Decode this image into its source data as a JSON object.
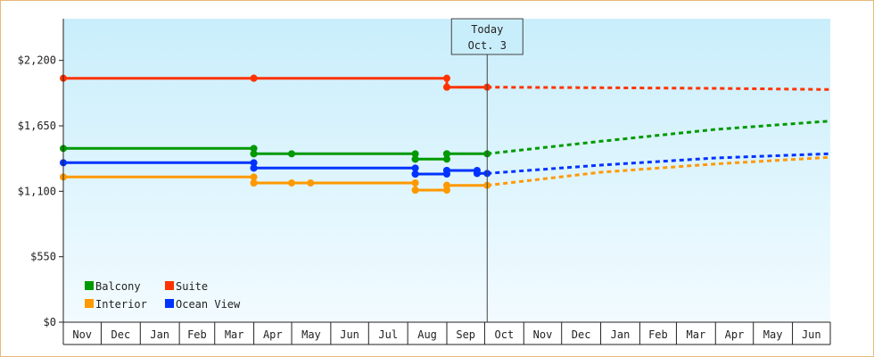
{
  "chart_data": {
    "type": "line",
    "title": "",
    "xlabel": "",
    "ylabel": "",
    "ylim": [
      0,
      2550
    ],
    "y_ticks": [
      0,
      550,
      1100,
      1650,
      2200
    ],
    "y_tick_labels": [
      "$0",
      "$550",
      "$1,100",
      "$1,650",
      "$2,200"
    ],
    "months": [
      "Nov",
      "Dec",
      "Jan",
      "Feb",
      "Mar",
      "Apr",
      "May",
      "Jun",
      "Jul",
      "Aug",
      "Sep",
      "Oct",
      "Nov",
      "Dec",
      "Jan",
      "Feb",
      "Mar",
      "Apr",
      "May",
      "Jun"
    ],
    "today_marker": {
      "line1": "Today",
      "line2": "Oct. 3",
      "date": "2023-10-03"
    },
    "legend": {
      "position": "bottom-left"
    },
    "grid": false,
    "series": [
      {
        "name": "Suite",
        "color": "#ff3300",
        "history": [
          [
            "2022-11-01",
            2050
          ],
          [
            "2023-04-01",
            2050
          ],
          [
            "2023-09-01",
            2050
          ],
          [
            "2023-09-01",
            1975
          ],
          [
            "2023-10-03",
            1975
          ]
        ],
        "markers": [
          "2023-04-01",
          "2023-09-01"
        ],
        "forecast": [
          [
            "2023-10-03",
            1975
          ],
          [
            "2024-01-01",
            1970
          ],
          [
            "2024-04-01",
            1965
          ],
          [
            "2024-06-30",
            1955
          ]
        ]
      },
      {
        "name": "Balcony",
        "color": "#009900",
        "history": [
          [
            "2022-11-01",
            1460
          ],
          [
            "2023-04-01",
            1460
          ],
          [
            "2023-04-01",
            1415
          ],
          [
            "2023-08-07",
            1415
          ],
          [
            "2023-08-07",
            1370
          ],
          [
            "2023-09-01",
            1370
          ],
          [
            "2023-09-01",
            1415
          ],
          [
            "2023-10-03",
            1415
          ]
        ],
        "markers": [
          "2023-04-01",
          "2023-05-01",
          "2023-08-07",
          "2023-09-01"
        ],
        "forecast": [
          [
            "2023-10-03",
            1415
          ],
          [
            "2024-01-01",
            1520
          ],
          [
            "2024-04-01",
            1620
          ],
          [
            "2024-06-30",
            1690
          ]
        ]
      },
      {
        "name": "Ocean View",
        "color": "#0033ff",
        "history": [
          [
            "2022-11-01",
            1340
          ],
          [
            "2023-04-01",
            1340
          ],
          [
            "2023-04-01",
            1295
          ],
          [
            "2023-08-07",
            1295
          ],
          [
            "2023-08-07",
            1245
          ],
          [
            "2023-09-01",
            1245
          ],
          [
            "2023-09-01",
            1275
          ],
          [
            "2023-09-25",
            1275
          ],
          [
            "2023-09-25",
            1250
          ],
          [
            "2023-10-03",
            1250
          ]
        ],
        "markers": [
          "2023-04-01",
          "2023-08-07",
          "2023-09-01",
          "2023-09-25"
        ],
        "forecast": [
          [
            "2023-10-03",
            1250
          ],
          [
            "2024-01-01",
            1320
          ],
          [
            "2024-04-01",
            1380
          ],
          [
            "2024-06-30",
            1415
          ]
        ]
      },
      {
        "name": "Interior",
        "color": "#ff9900",
        "history": [
          [
            "2022-11-01",
            1220
          ],
          [
            "2023-04-01",
            1220
          ],
          [
            "2023-04-01",
            1170
          ],
          [
            "2023-08-07",
            1170
          ],
          [
            "2023-08-07",
            1110
          ],
          [
            "2023-09-01",
            1110
          ],
          [
            "2023-09-01",
            1150
          ],
          [
            "2023-10-03",
            1150
          ]
        ],
        "markers": [
          "2023-04-01",
          "2023-05-01",
          "2023-05-16",
          "2023-08-07",
          "2023-09-01"
        ],
        "forecast": [
          [
            "2023-10-03",
            1150
          ],
          [
            "2024-01-01",
            1260
          ],
          [
            "2024-04-01",
            1330
          ],
          [
            "2024-06-30",
            1385
          ]
        ]
      }
    ],
    "legend_order": [
      "Balcony",
      "Suite",
      "Interior",
      "Ocean View"
    ]
  }
}
